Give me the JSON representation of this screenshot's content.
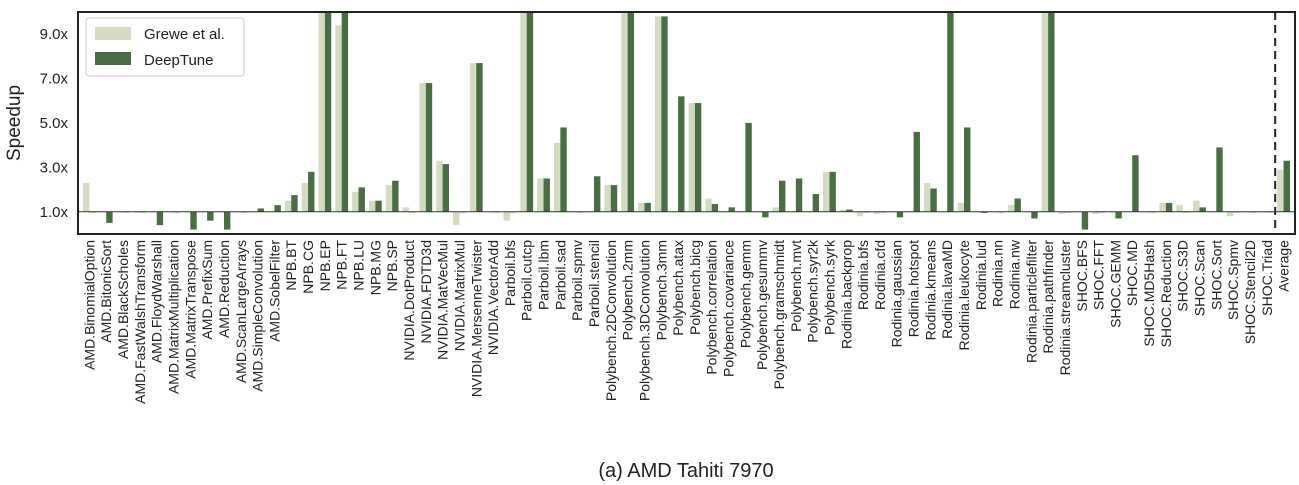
{
  "caption": "(a) AMD Tahiti 7970",
  "chart_data": {
    "type": "bar",
    "ylabel": "Speedup",
    "xlabel": "",
    "ylim": [
      0,
      10
    ],
    "yticks": [
      1,
      3,
      5,
      7,
      9
    ],
    "ytick_labels": [
      "1.0x",
      "3.0x",
      "5.0x",
      "7.0x",
      "9.0x"
    ],
    "baseline": 1.0,
    "legend_position": "top-left",
    "grid": false,
    "categories": [
      "AMD.BinomialOption",
      "AMD.BitonicSort",
      "AMD.BlackScholes",
      "AMD.FastWalshTransform",
      "AMD.FloydWarshall",
      "AMD.MatrixMultiplication",
      "AMD.MatrixTranspose",
      "AMD.PrefixSum",
      "AMD.Reduction",
      "AMD.ScanLargeArrays",
      "AMD.SimpleConvolution",
      "AMD.SobelFilter",
      "NPB.BT",
      "NPB.CG",
      "NPB.EP",
      "NPB.FT",
      "NPB.LU",
      "NPB.MG",
      "NPB.SP",
      "NVIDIA.DotProduct",
      "NVIDIA.FDTD3d",
      "NVIDIA.MatVecMul",
      "NVIDIA.MatrixMul",
      "NVIDIA.MersenneTwister",
      "NVIDIA.VectorAdd",
      "Parboil.bfs",
      "Parboil.cutcp",
      "Parboil.lbm",
      "Parboil.sad",
      "Parboil.spmv",
      "Parboil.stencil",
      "Polybench.2DConvolution",
      "Polybench.2mm",
      "Polybench.3DConvolution",
      "Polybench.3mm",
      "Polybench.atax",
      "Polybench.bicg",
      "Polybench.correlation",
      "Polybench.covariance",
      "Polybench.gemm",
      "Polybench.gesummv",
      "Polybench.gramschmidt",
      "Polybench.mvt",
      "Polybench.syr2k",
      "Polybench.syrk",
      "Rodinia.backprop",
      "Rodinia.bfs",
      "Rodinia.cfd",
      "Rodinia.gaussian",
      "Rodinia.hotspot",
      "Rodinia.kmeans",
      "Rodinia.lavaMD",
      "Rodinia.leukocyte",
      "Rodinia.lud",
      "Rodinia.nn",
      "Rodinia.nw",
      "Rodinia.particlefilter",
      "Rodinia.pathfinder",
      "Rodinia.streamcluster",
      "SHOC.BFS",
      "SHOC.FFT",
      "SHOC.GEMM",
      "SHOC.MD",
      "SHOC.MD5Hash",
      "SHOC.Reduction",
      "SHOC.S3D",
      "SHOC.Scan",
      "SHOC.Sort",
      "SHOC.Spmv",
      "SHOC.Stencil2D",
      "SHOC.Triad",
      "Average"
    ],
    "series": [
      {
        "name": "Grewe et al.",
        "color": "#d3dcc3",
        "values": [
          2.3,
          1.0,
          1.0,
          1.0,
          1.0,
          1.0,
          1.0,
          1.0,
          1.0,
          1.0,
          1.0,
          1.0,
          1.5,
          2.3,
          10.0,
          9.4,
          1.9,
          1.5,
          2.2,
          1.2,
          6.8,
          3.3,
          0.4,
          7.7,
          1.0,
          0.6,
          10.0,
          2.5,
          4.1,
          1.0,
          1.0,
          2.2,
          10.0,
          1.4,
          9.8,
          1.0,
          5.9,
          1.6,
          1.0,
          1.0,
          1.0,
          1.2,
          1.0,
          1.0,
          2.8,
          1.1,
          0.8,
          0.9,
          1.0,
          1.0,
          2.3,
          1.0,
          1.4,
          1.0,
          1.0,
          1.3,
          1.0,
          10.0,
          0.9,
          1.0,
          0.9,
          1.0,
          1.0,
          1.0,
          1.4,
          1.3,
          1.5,
          1.0,
          0.8,
          1.0,
          1.0,
          2.9
        ]
      },
      {
        "name": "DeepTune",
        "color": "#4a6d43",
        "values": [
          1.0,
          0.5,
          1.0,
          1.0,
          0.4,
          1.0,
          0.2,
          0.6,
          0.2,
          1.0,
          1.15,
          1.3,
          1.75,
          2.8,
          10.0,
          10.0,
          2.1,
          1.5,
          2.4,
          1.0,
          6.8,
          3.15,
          1.0,
          7.7,
          1.0,
          1.0,
          10.0,
          2.5,
          4.8,
          1.0,
          2.6,
          2.2,
          10.0,
          1.4,
          9.8,
          6.2,
          5.9,
          1.35,
          1.2,
          5.0,
          0.75,
          2.4,
          2.5,
          1.8,
          2.8,
          1.1,
          1.0,
          1.0,
          0.75,
          4.6,
          2.05,
          10.0,
          4.8,
          0.95,
          1.0,
          1.6,
          0.7,
          10.0,
          1.0,
          0.2,
          1.0,
          0.7,
          3.55,
          1.0,
          1.4,
          1.0,
          1.2,
          3.9,
          1.0,
          1.0,
          1.0,
          3.3
        ]
      }
    ]
  }
}
